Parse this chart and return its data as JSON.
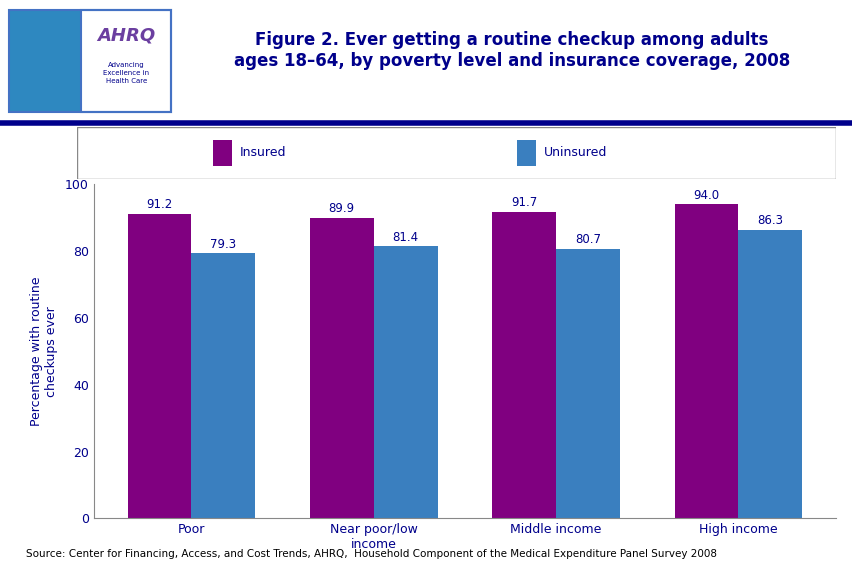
{
  "title": "Figure 2. Ever getting a routine checkup among adults\nages 18–64, by poverty level and insurance coverage, 2008",
  "categories": [
    "Poor",
    "Near poor/low\nincome",
    "Middle income",
    "High income"
  ],
  "insured_values": [
    91.2,
    89.9,
    91.7,
    94.0
  ],
  "uninsured_values": [
    79.3,
    81.4,
    80.7,
    86.3
  ],
  "insured_color": "#800080",
  "uninsured_color": "#3A7FBF",
  "ylabel": "Percentage with routine\ncheckups ever",
  "ylim": [
    0,
    100
  ],
  "yticks": [
    0,
    20,
    40,
    60,
    80,
    100
  ],
  "legend_insured": "Insured",
  "legend_uninsured": "Uninsured",
  "source_text": "Source: Center for Financing, Access, and Cost Trends, AHRQ,  Household Component of the Medical Expenditure Panel Survey 2008",
  "title_color": "#00008B",
  "bar_width": 0.35,
  "background_color": "#FFFFFF",
  "dark_blue": "#00008B",
  "label_fontsize": 9,
  "value_label_fontsize": 8.5,
  "title_fontsize": 12,
  "source_fontsize": 7.5
}
